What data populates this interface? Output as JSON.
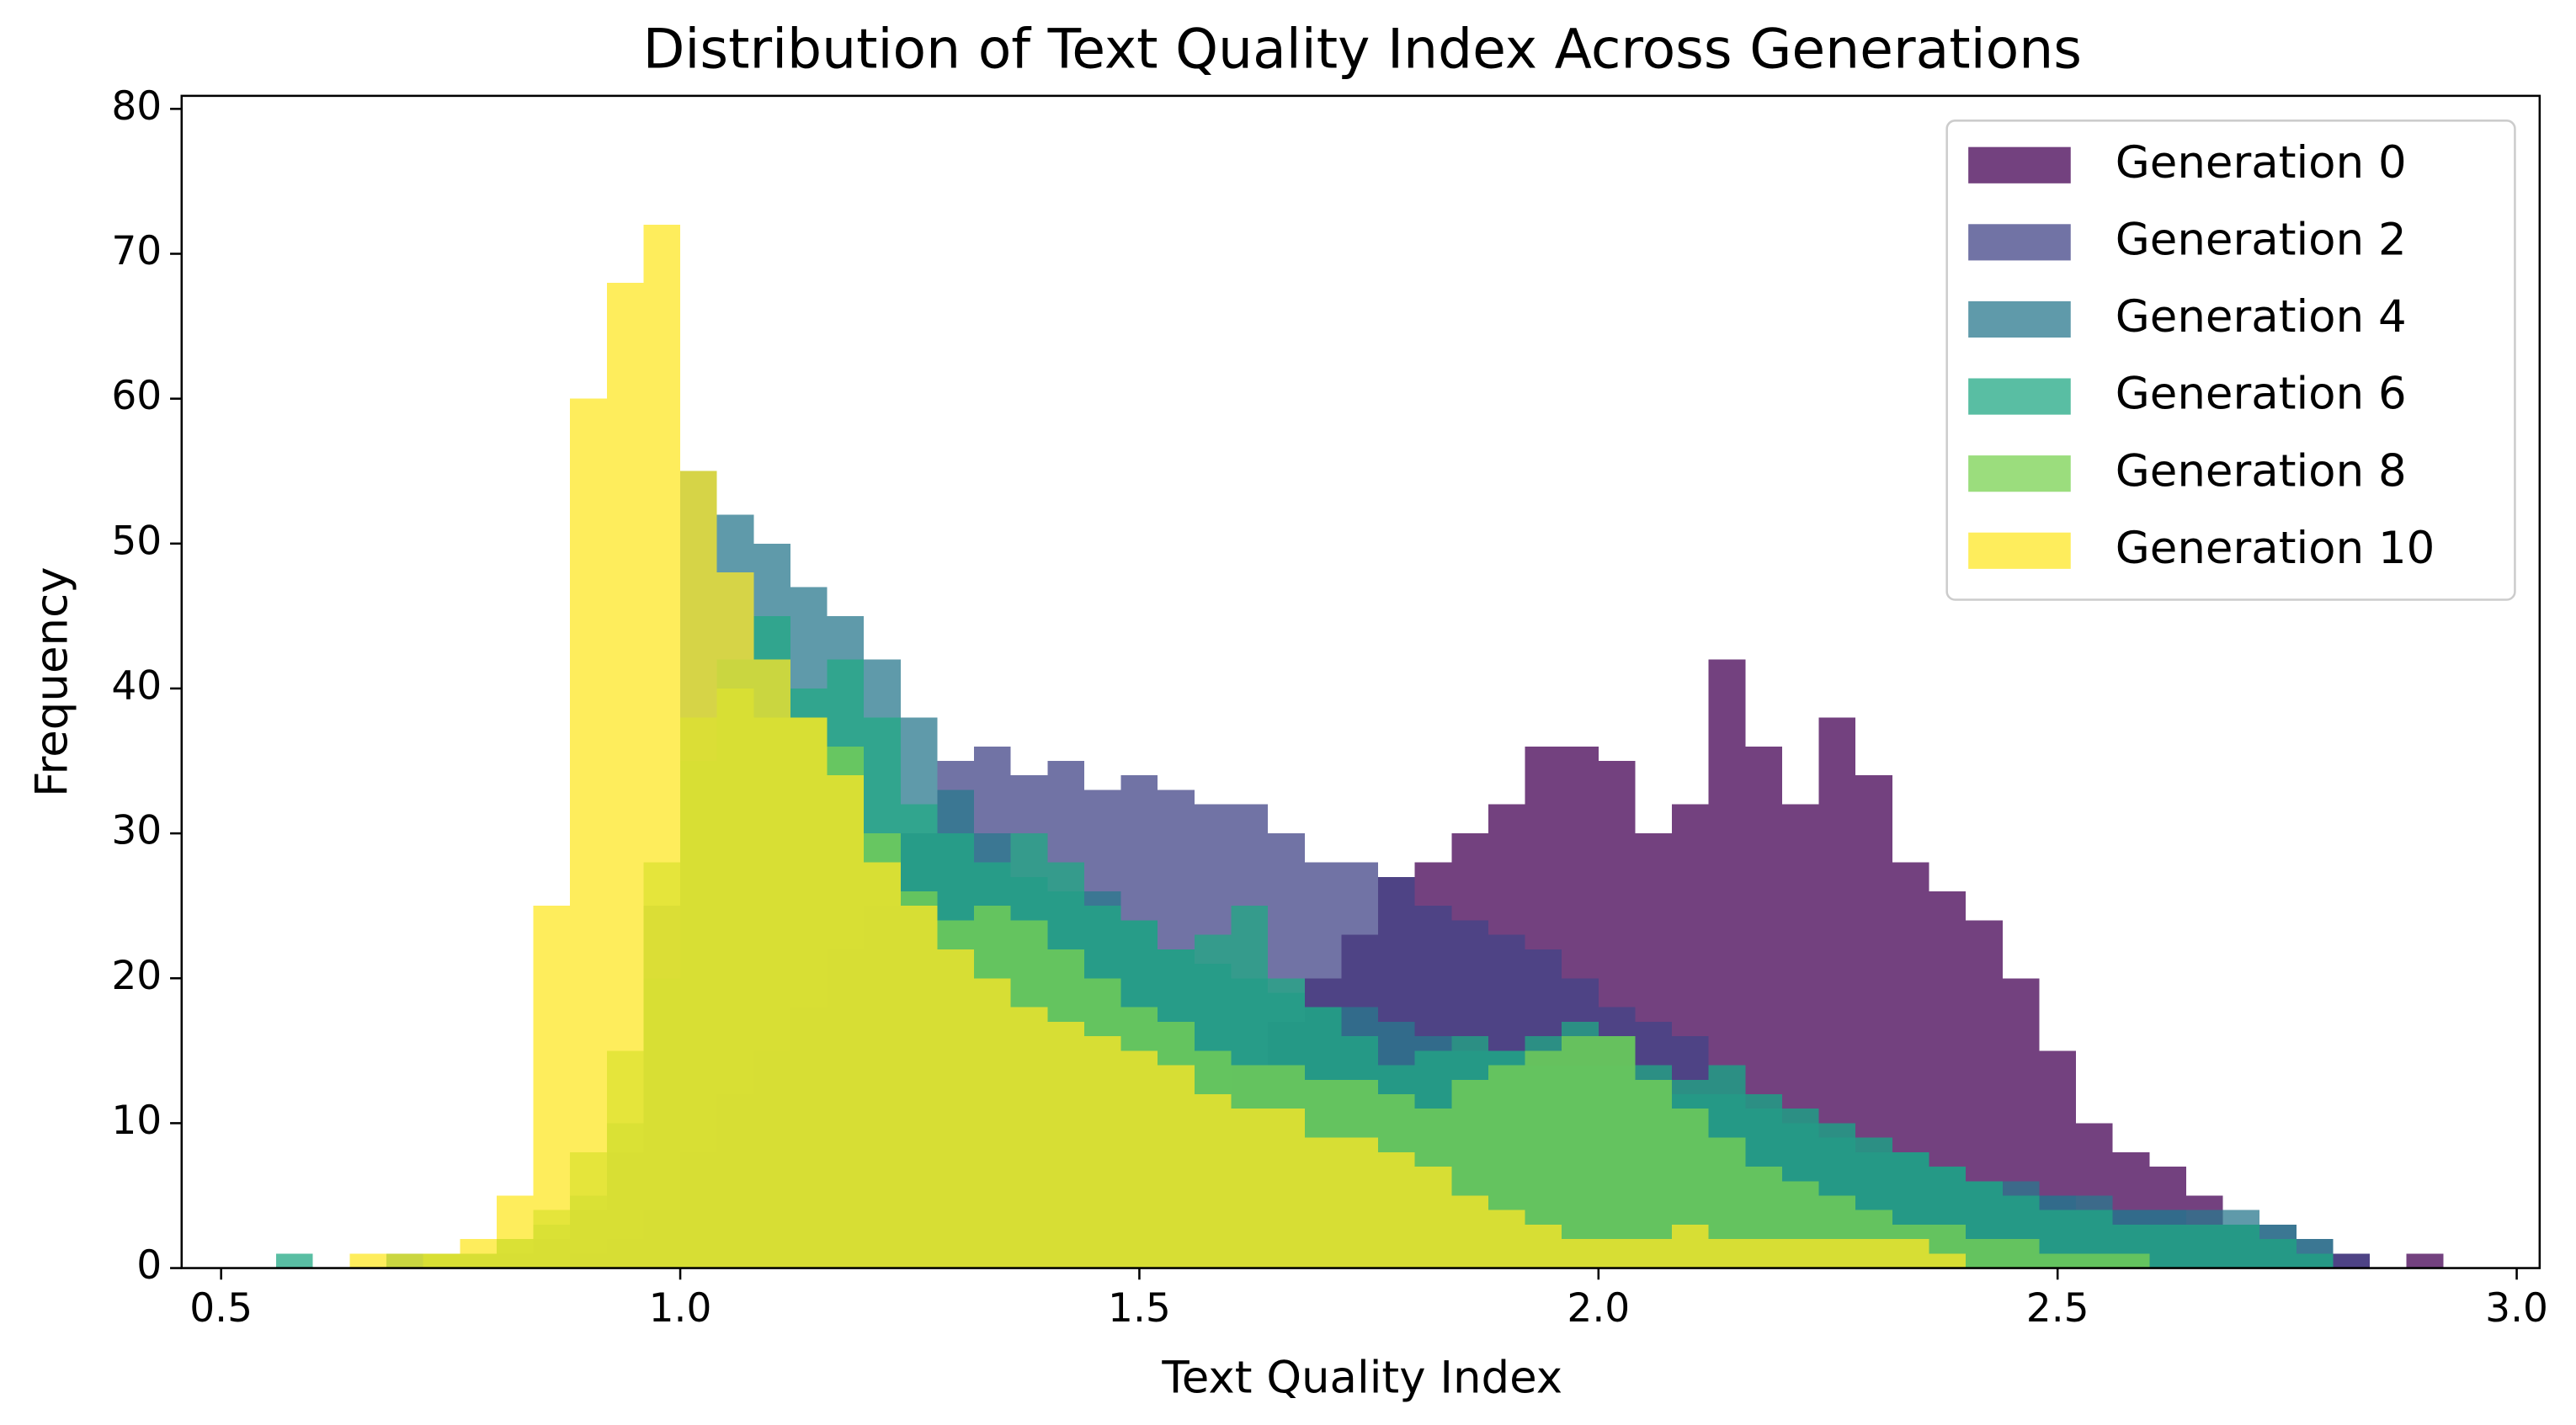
{
  "chart_data": {
    "type": "histogram",
    "title": "Distribution of Text Quality Index Across Generations",
    "x_label": "Text Quality Index",
    "y_label": "Frequency",
    "xlim": [
      0.457,
      3.025
    ],
    "ylim": [
      0,
      80.9
    ],
    "xticks": [
      0.5,
      {
        "value": 1,
        "label": "1.0"
      },
      1.5,
      {
        "value": 2,
        "label": "2.0"
      },
      2.5,
      {
        "value": 3,
        "label": "3.0"
      }
    ],
    "yticks": [
      0,
      10,
      20,
      30,
      40,
      50,
      60,
      70,
      80
    ],
    "legend": "upper right",
    "opacity": 0.75,
    "bins": [
      0.56,
      0.6,
      0.64,
      0.68,
      0.72,
      0.76,
      0.8,
      0.84,
      0.88,
      0.92,
      0.96,
      1.0,
      1.04,
      1.08,
      1.12,
      1.16,
      1.2,
      1.24,
      1.28,
      1.32,
      1.36,
      1.4,
      1.44,
      1.48,
      1.52,
      1.56,
      1.6,
      1.64,
      1.68,
      1.72,
      1.76,
      1.8,
      1.84,
      1.88,
      1.92,
      1.96,
      2.0,
      2.04,
      2.08,
      2.12,
      2.16,
      2.2,
      2.24,
      2.28,
      2.32,
      2.36,
      2.4,
      2.44,
      2.48,
      2.52,
      2.56,
      2.6,
      2.64,
      2.68,
      2.72,
      2.76,
      2.8,
      2.84,
      2.88,
      2.92
    ],
    "series": [
      {
        "name": "Generation 0",
        "color": "#440154",
        "values": [
          0,
          0,
          0,
          0,
          0,
          0,
          0,
          0,
          0,
          0,
          0,
          0,
          0,
          0,
          0,
          0,
          0,
          0,
          1,
          2,
          3,
          4,
          6,
          8,
          10,
          12,
          14,
          17,
          20,
          23,
          27,
          28,
          30,
          32,
          36,
          36,
          35,
          30,
          32,
          42,
          36,
          32,
          38,
          34,
          28,
          26,
          24,
          20,
          15,
          10,
          8,
          7,
          5,
          3,
          2,
          1,
          1,
          0,
          1
        ]
      },
      {
        "name": "Generation 2",
        "color": "#414487",
        "values": [
          0,
          0,
          0,
          0,
          0,
          0,
          0,
          0,
          1,
          2,
          4,
          8,
          12,
          15,
          18,
          22,
          25,
          30,
          35,
          36,
          34,
          35,
          33,
          34,
          33,
          32,
          32,
          30,
          28,
          28,
          27,
          25,
          24,
          23,
          22,
          20,
          18,
          17,
          16,
          14,
          12,
          11,
          10,
          9,
          8,
          7,
          6,
          5,
          5,
          4,
          4,
          4,
          3,
          3,
          3,
          2,
          1,
          0,
          0
        ]
      },
      {
        "name": "Generation 4",
        "color": "#2a788e",
        "values": [
          0,
          0,
          0,
          1,
          1,
          1,
          1,
          2,
          4,
          8,
          25,
          55,
          52,
          50,
          47,
          45,
          42,
          38,
          33,
          30,
          27,
          26,
          26,
          24,
          22,
          21,
          20,
          19,
          18,
          18,
          17,
          16,
          15,
          15,
          14,
          14,
          14,
          13,
          12,
          12,
          11,
          10,
          9,
          8,
          8,
          7,
          6,
          6,
          5,
          5,
          4,
          4,
          4,
          4,
          3,
          2,
          0,
          0,
          0
        ]
      },
      {
        "name": "Generation 6",
        "color": "#22a884",
        "values": [
          1,
          0,
          0,
          1,
          1,
          1,
          2,
          3,
          5,
          10,
          20,
          35,
          42,
          45,
          40,
          42,
          38,
          32,
          30,
          28,
          30,
          28,
          25,
          24,
          22,
          23,
          25,
          20,
          18,
          16,
          14,
          15,
          16,
          15,
          16,
          17,
          16,
          14,
          13,
          14,
          12,
          11,
          10,
          9,
          8,
          7,
          6,
          5,
          4,
          4,
          3,
          3,
          3,
          3,
          2,
          1,
          0,
          0,
          0
        ]
      },
      {
        "name": "Generation 8",
        "color": "#7ad151",
        "values": [
          0,
          0,
          0,
          0,
          1,
          1,
          2,
          4,
          8,
          15,
          28,
          38,
          40,
          38,
          38,
          36,
          30,
          26,
          24,
          25,
          24,
          22,
          20,
          18,
          17,
          15,
          14,
          14,
          13,
          13,
          12,
          11,
          13,
          14,
          15,
          16,
          16,
          13,
          11,
          9,
          7,
          6,
          5,
          4,
          3,
          3,
          2,
          2,
          1,
          1,
          1,
          0,
          0,
          0,
          0,
          0,
          0,
          0,
          0
        ]
      },
      {
        "name": "Generation 10",
        "color": "#fde725",
        "values": [
          0,
          0,
          1,
          1,
          1,
          2,
          5,
          25,
          60,
          68,
          72,
          55,
          48,
          42,
          38,
          34,
          28,
          25,
          22,
          20,
          18,
          17,
          16,
          15,
          14,
          12,
          11,
          11,
          9,
          9,
          8,
          7,
          5,
          4,
          3,
          2,
          2,
          2,
          3,
          2,
          2,
          2,
          2,
          2,
          2,
          1,
          0,
          0,
          0,
          0,
          0,
          0,
          0,
          0,
          0,
          0,
          0,
          0,
          0
        ]
      }
    ]
  }
}
